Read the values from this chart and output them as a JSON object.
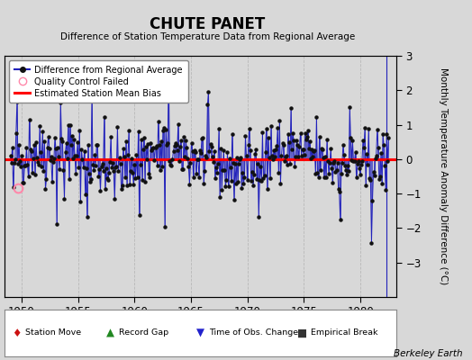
{
  "title": "CHUTE PANET",
  "subtitle": "Difference of Station Temperature Data from Regional Average",
  "ylabel": "Monthly Temperature Anomaly Difference (°C)",
  "credit": "Berkeley Earth",
  "xlim": [
    1948.5,
    1983.2
  ],
  "ylim": [
    -4,
    3
  ],
  "yticks_right": [
    -3,
    -2,
    -1,
    0,
    1,
    2,
    3
  ],
  "xticks": [
    1950,
    1955,
    1960,
    1965,
    1970,
    1975,
    1980
  ],
  "bias_value": 0.0,
  "bg_color": "#d8d8d8",
  "plot_bg": "#d8d8d8",
  "line_color": "#2222bb",
  "bias_color": "#ff0000",
  "marker_color": "#111111",
  "qc_color": "#ff88aa",
  "seed": 42,
  "n_points": 400,
  "start_year": 1949.0,
  "end_year": 1982.5,
  "end_line_x": 1982.3
}
